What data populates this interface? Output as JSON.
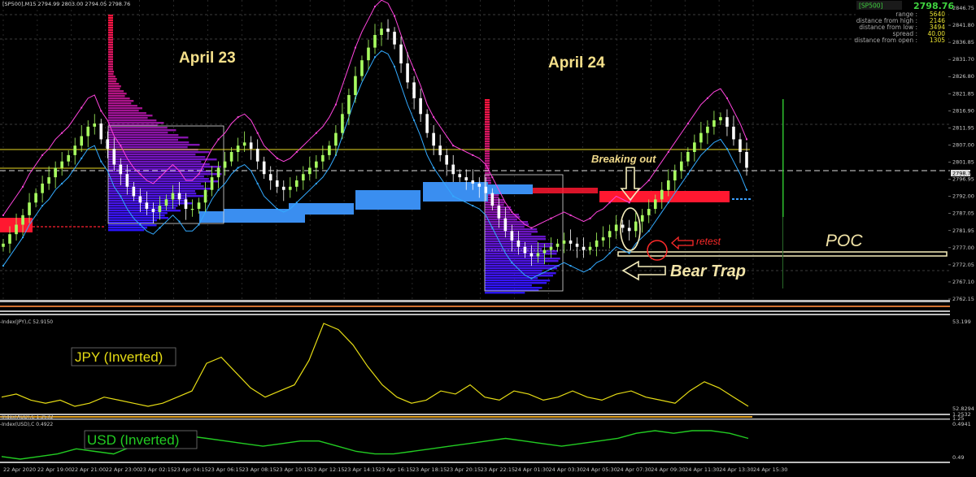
{
  "window": {
    "symbol_header": "[SP500],M15  2794.99 2803.00 2794.05 2798.76"
  },
  "info_panel": {
    "symbol": "[SP500]",
    "price": "2798.76",
    "rows": [
      {
        "label": "range :",
        "value": "5640"
      },
      {
        "label": "distance from high :",
        "value": "2146"
      },
      {
        "label": "distance from low :",
        "value": "3494"
      },
      {
        "label": "spread :",
        "value": "40.00"
      },
      {
        "label": "distance from open :",
        "value": "1305"
      }
    ]
  },
  "annotations": {
    "day1": "April 23",
    "day2": "April 24",
    "breaking_out": "Breaking out",
    "retest": "retest",
    "poc": "POC",
    "bear_trap": "Bear Trap",
    "jpy": "JPY (Inverted)",
    "usd": "USD (Inverted)"
  },
  "indicators": {
    "jpy_header": "-Index(JPY),C 52.9150",
    "usd_header": "-Index(USD),C 0.4922",
    "aud_header": "-Index(AUD),C 1.2532",
    "jpy_scale_top": "53.199",
    "jpy_scale_bottom": "52.8294",
    "usd_scale_top": "0.4941",
    "usd_scale_bottom": "0.49",
    "mid_scale_a": "1.2532",
    "mid_scale_b": "1.25"
  },
  "colors": {
    "bull_candle": "#a8ff60",
    "bear_candle": "#ffffff",
    "volume_profile_red": "#ff1c4a",
    "volume_profile_blue": "#2640ff",
    "upper_band": "#ff44dd",
    "lower_band": "#33aaff",
    "jpy_line": "#e6dc14",
    "usd_line": "#22cc22",
    "poc_line": "#f5edbb"
  },
  "chart_data": {
    "type": "candlestick",
    "symbol": "[SP500]",
    "timeframe": "M15",
    "ohlc_last": {
      "open": 2794.99,
      "high": 2803.0,
      "low": 2794.05,
      "close": 2798.76
    },
    "ylim": [
      2758,
      2850
    ],
    "price_ticks": [
      "2846.75",
      "2841.80",
      "2836.85",
      "2831.70",
      "2826.80",
      "2821.85",
      "2816.90",
      "2811.95",
      "2807.00",
      "2801.85",
      "2796.95",
      "2792.00",
      "2787.05",
      "2781.95",
      "2777.00",
      "2772.05",
      "2767.10",
      "2762.15"
    ],
    "highlighted_price": "2798.76",
    "time_ticks": [
      "22 Apr 2020",
      "22 Apr 19:00",
      "22 Apr 21:00",
      "22 Apr 23:00",
      "23 Apr 02:15",
      "23 Apr 04:15",
      "23 Apr 06:15",
      "23 Apr 08:15",
      "23 Apr 10:15",
      "23 Apr 12:15",
      "23 Apr 14:15",
      "23 Apr 16:15",
      "23 Apr 18:15",
      "23 Apr 20:15",
      "23 Apr 22:15",
      "24 Apr 01:30",
      "24 Apr 03:30",
      "24 Apr 05:30",
      "24 Apr 07:30",
      "24 Apr 09:30",
      "24 Apr 11:30",
      "24 Apr 13:30",
      "24 Apr 15:30"
    ],
    "closes": [
      2775,
      2778,
      2781,
      2784,
      2788,
      2791,
      2794,
      2796,
      2799,
      2801,
      2803,
      2806,
      2809,
      2812,
      2813,
      2808,
      2805,
      2800,
      2797,
      2793,
      2790,
      2788,
      2786,
      2785,
      2787,
      2789,
      2791,
      2789,
      2786,
      2786,
      2788,
      2792,
      2796,
      2799,
      2801,
      2804,
      2806,
      2807,
      2805,
      2801,
      2797,
      2795,
      2793,
      2792,
      2793,
      2795,
      2797,
      2799,
      2801,
      2803,
      2806,
      2810,
      2816,
      2822,
      2828,
      2833,
      2837,
      2841,
      2843,
      2842,
      2838,
      2832,
      2826,
      2821,
      2816,
      2810,
      2806,
      2803,
      2800,
      2797,
      2796,
      2795,
      2794,
      2793,
      2791,
      2787,
      2783,
      2779,
      2776,
      2774,
      2772,
      2771,
      2772,
      2773,
      2774,
      2775,
      2776,
      2775,
      2774,
      2773,
      2774,
      2776,
      2777,
      2779,
      2781,
      2780,
      2779,
      2782,
      2784,
      2786,
      2789,
      2792,
      2795,
      2798,
      2801,
      2804,
      2807,
      2810,
      2812,
      2814,
      2815,
      2812,
      2808,
      2804,
      2799
    ],
    "poc_price": 2776.5,
    "series": [
      {
        "name": "JPY (Inverted)",
        "values": [
          52.95,
          52.96,
          52.94,
          52.93,
          52.94,
          52.92,
          52.93,
          52.95,
          52.94,
          52.93,
          52.92,
          52.93,
          52.95,
          52.97,
          53.06,
          53.08,
          53.03,
          52.98,
          52.95,
          52.97,
          52.99,
          53.07,
          53.19,
          53.17,
          53.12,
          53.05,
          52.99,
          52.95,
          52.93,
          52.94,
          52.97,
          52.96,
          52.99,
          52.95,
          52.94,
          52.97,
          52.96,
          52.94,
          52.95,
          52.97,
          52.95,
          52.94,
          52.96,
          52.97,
          52.95,
          52.94,
          52.93,
          52.97,
          53.0,
          52.98,
          52.95,
          52.92
        ]
      },
      {
        "name": "USD (Inverted)",
        "values": [
          0.4915,
          0.4914,
          0.4915,
          0.4916,
          0.4918,
          0.4917,
          0.4916,
          0.4919,
          0.4921,
          0.4922,
          0.4923,
          0.4922,
          0.4921,
          0.492,
          0.4919,
          0.492,
          0.4921,
          0.4921,
          0.4919,
          0.4917,
          0.4916,
          0.4916,
          0.4917,
          0.4918,
          0.4919,
          0.492,
          0.4921,
          0.4922,
          0.4921,
          0.492,
          0.4919,
          0.492,
          0.4921,
          0.4922,
          0.4924,
          0.4925,
          0.4924,
          0.4925,
          0.4925,
          0.4924,
          0.4922
        ]
      }
    ]
  }
}
